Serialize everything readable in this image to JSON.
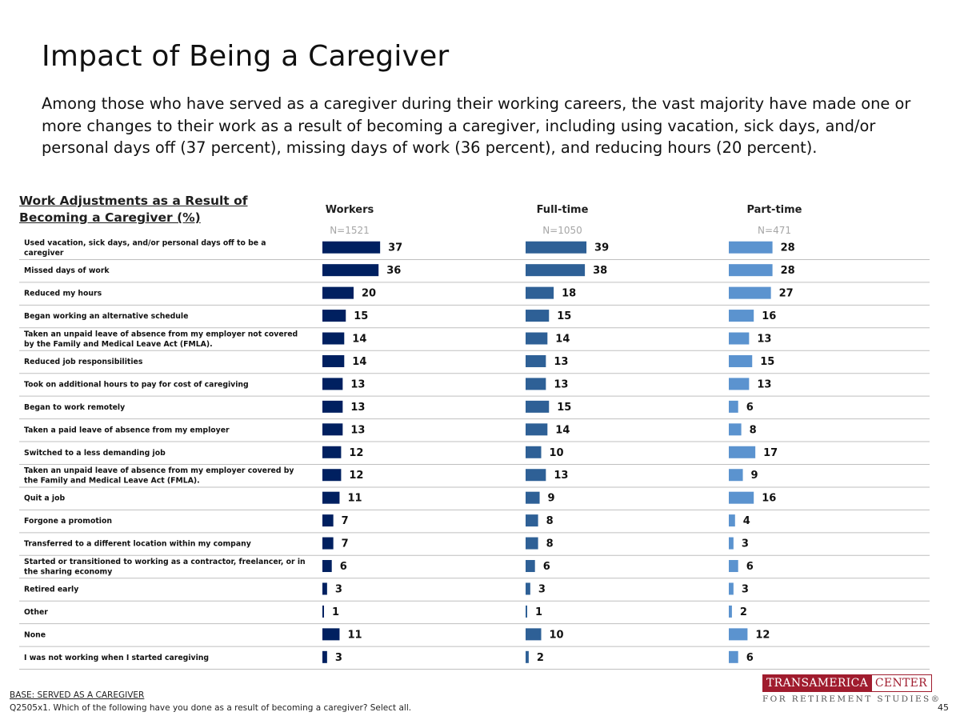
{
  "title": "Impact of Being a Caregiver",
  "subtitle": "Among those who have served as a caregiver during their working careers, the vast majority have made one or more changes to their work as a result of becoming a caregiver, including using vacation, sick days, and/or personal days off (37 percent), missing days of work (36 percent), and reducing hours (20 percent).",
  "footer": {
    "base": "BASE: SERVED AS A CAREGIVER",
    "question": "Q2505x1. Which of the following have you done as a result of becoming a caregiver? Select all.",
    "page_number": "45"
  },
  "logo": {
    "left_text": "TRANSAMERICA",
    "right_text": "CENTER",
    "tagline": "FOR RETIREMENT STUDIES®"
  },
  "chart_data": {
    "type": "bar",
    "orientation": "horizontal",
    "title": "Work Adjustments as a Result of Becoming a Caregiver (%)",
    "categories": [
      "Used vacation, sick days, and/or personal days off to be a caregiver",
      "Missed days of work",
      "Reduced my hours",
      "Began working an alternative schedule",
      "Taken an unpaid leave of absence from my employer not covered by the Family and Medical Leave Act (FMLA).",
      "Reduced job responsibilities",
      "Took on additional hours to pay for cost of caregiving",
      "Began to work remotely",
      "Taken a paid leave of absence from my employer",
      "Switched to a less demanding job",
      "Taken an unpaid leave of absence from my employer covered by the Family and Medical Leave Act (FMLA).",
      "Quit a job",
      "Forgone a promotion",
      "Transferred to a different location within my company",
      "Started or transitioned to working as a contractor, freelancer, or in the sharing economy",
      "Retired early",
      "Other",
      "None",
      "I was not working when I started caregiving"
    ],
    "series": [
      {
        "name": "Workers",
        "n": "N=1521",
        "color": "#002060",
        "values": [
          37,
          36,
          20,
          15,
          14,
          14,
          13,
          13,
          13,
          12,
          12,
          11,
          7,
          7,
          6,
          3,
          1,
          11,
          3
        ]
      },
      {
        "name": "Full-time",
        "n": "N=1050",
        "color": "#2e6096",
        "values": [
          39,
          38,
          18,
          15,
          14,
          13,
          13,
          15,
          14,
          10,
          13,
          9,
          8,
          8,
          6,
          3,
          1,
          10,
          2
        ]
      },
      {
        "name": "Part-time",
        "n": "N=471",
        "color": "#5b93cf",
        "values": [
          28,
          28,
          27,
          16,
          13,
          15,
          13,
          6,
          8,
          17,
          9,
          16,
          4,
          3,
          6,
          3,
          2,
          12,
          6
        ]
      }
    ],
    "row_separator_color": "#bfbfbf"
  }
}
